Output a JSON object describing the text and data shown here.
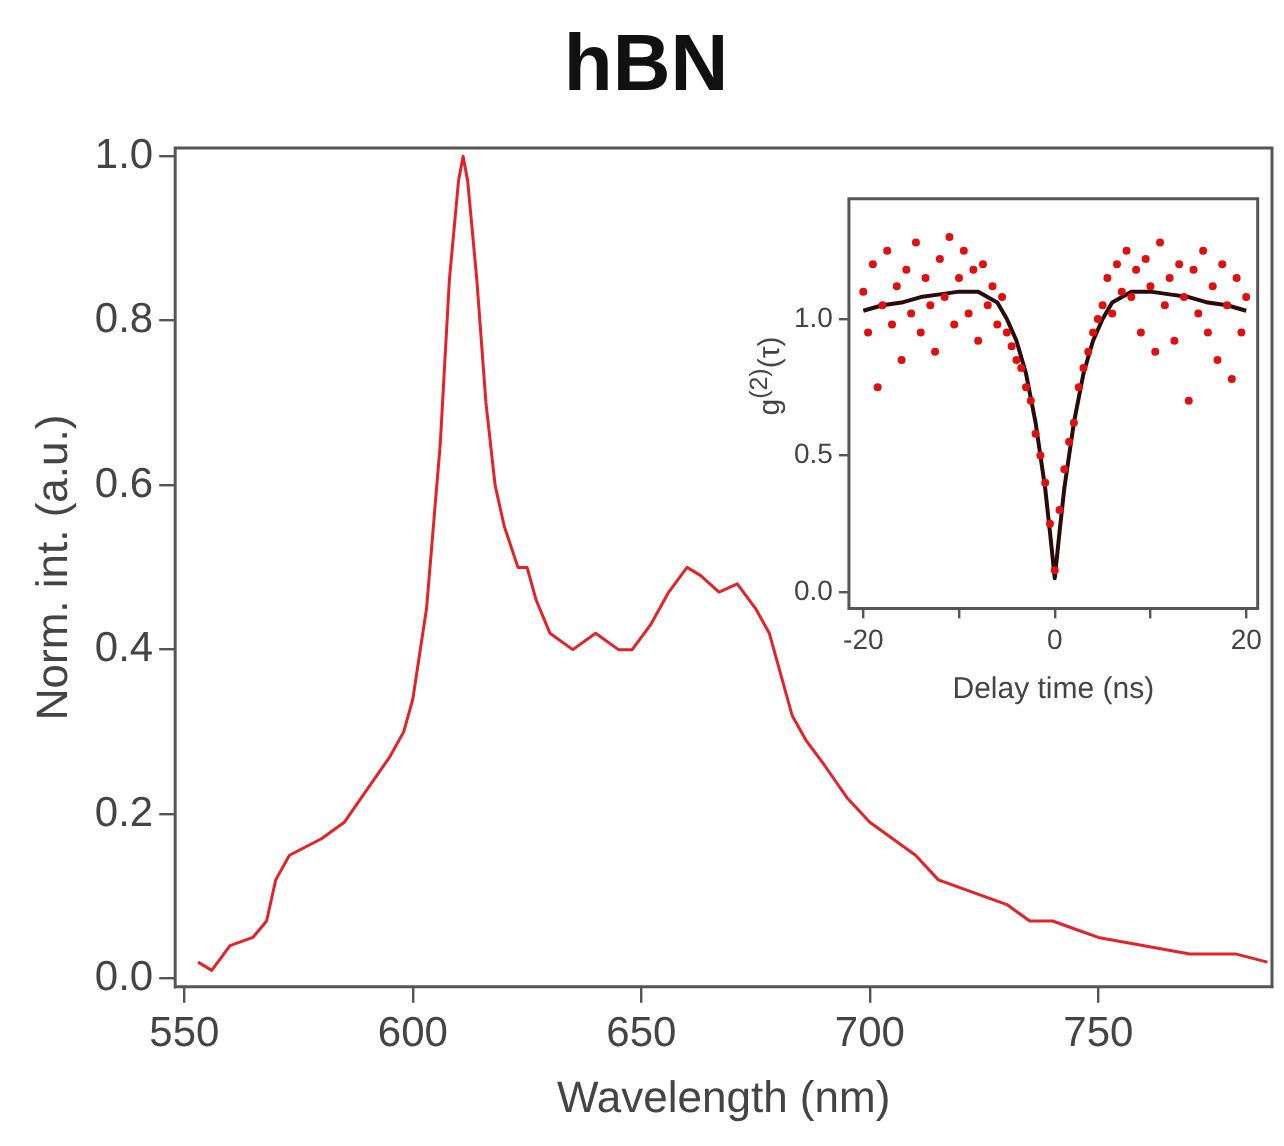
{
  "chart_data": [
    {
      "type": "line",
      "title": "hBN",
      "xlabel": "Wavelength (nm)",
      "ylabel": "Norm. int. (a.u.)",
      "color": "#e3222a",
      "x": [
        553,
        556,
        560,
        565,
        568,
        570,
        573,
        580,
        585,
        590,
        595,
        598,
        600,
        603,
        606,
        608,
        610,
        611,
        612,
        614,
        616,
        618,
        620,
        623,
        625,
        627,
        630,
        635,
        640,
        645,
        648,
        652,
        656,
        660,
        663,
        667,
        671,
        675,
        678,
        680,
        683,
        686,
        690,
        695,
        700,
        705,
        710,
        715,
        720,
        725,
        730,
        735,
        740,
        745,
        750,
        760,
        770,
        780,
        787
      ],
      "values": [
        0.02,
        0.01,
        0.04,
        0.05,
        0.07,
        0.12,
        0.15,
        0.17,
        0.19,
        0.23,
        0.27,
        0.3,
        0.34,
        0.45,
        0.65,
        0.85,
        0.97,
        1.0,
        0.97,
        0.85,
        0.7,
        0.6,
        0.55,
        0.5,
        0.5,
        0.46,
        0.42,
        0.4,
        0.42,
        0.4,
        0.4,
        0.43,
        0.47,
        0.5,
        0.49,
        0.47,
        0.48,
        0.45,
        0.42,
        0.38,
        0.32,
        0.29,
        0.26,
        0.22,
        0.19,
        0.17,
        0.15,
        0.12,
        0.11,
        0.1,
        0.09,
        0.07,
        0.07,
        0.06,
        0.05,
        0.04,
        0.03,
        0.03,
        0.02
      ],
      "xlim": [
        548,
        788
      ],
      "ylim": [
        -0.01,
        1.01
      ],
      "xticks": [
        550,
        600,
        650,
        700,
        750
      ],
      "yticks": [
        {
          "value": 0,
          "label": "0.0"
        },
        {
          "value": 0.2,
          "label": "0.2"
        },
        {
          "value": 0.4,
          "label": "0.4"
        },
        {
          "value": 0.6,
          "label": "0.6"
        },
        {
          "value": 0.8,
          "label": "0.8"
        },
        {
          "value": 1,
          "label": "1.0"
        }
      ],
      "grid": false,
      "legend": false
    },
    {
      "type": "scatter",
      "xlabel": "Delay time (ns)",
      "ylabel": "g$^{(2)}$(τ)",
      "series": [
        {
          "type": "scatter",
          "color": "#e01010",
          "marker": "circle",
          "x": [
            -20,
            -19.5,
            -19,
            -18.5,
            -18,
            -17.5,
            -17,
            -16.5,
            -16,
            -15.5,
            -15,
            -14.5,
            -14,
            -13.5,
            -13,
            -12.5,
            -12,
            -11.5,
            -11,
            -10.5,
            -10,
            -9.5,
            -9,
            -8.5,
            -8,
            -7.5,
            -7,
            -6.5,
            -6,
            -5.5,
            -5,
            -4.5,
            -4,
            -3.5,
            -3,
            -2.5,
            -2,
            -1.5,
            -1,
            -0.5,
            0,
            0.5,
            1,
            1.5,
            2,
            2.5,
            3,
            3.5,
            4,
            4.5,
            5,
            5.5,
            6,
            6.5,
            7,
            7.5,
            8,
            8.5,
            9,
            9.5,
            10,
            10.5,
            11,
            11.5,
            12,
            12.5,
            13,
            13.5,
            14,
            14.5,
            15,
            15.5,
            16,
            16.5,
            17,
            17.5,
            18,
            18.5,
            19,
            19.5,
            20
          ],
          "values": [
            1.1,
            0.95,
            1.2,
            0.75,
            1.05,
            1.25,
            0.98,
            1.12,
            0.85,
            1.18,
            1.02,
            1.28,
            0.95,
            1.15,
            1.05,
            0.88,
            1.22,
            1.08,
            1.3,
            0.98,
            1.15,
            1.25,
            1.02,
            1.18,
            0.92,
            1.2,
            1.05,
            1.12,
            0.98,
            1.08,
            0.95,
            0.9,
            0.85,
            0.82,
            0.75,
            0.7,
            0.58,
            0.5,
            0.4,
            0.25,
            0.08,
            0.3,
            0.45,
            0.55,
            0.62,
            0.75,
            0.82,
            0.88,
            0.95,
            1.0,
            1.05,
            1.15,
            1.02,
            1.2,
            1.1,
            1.25,
            1.08,
            1.18,
            0.95,
            1.22,
            1.12,
            0.88,
            1.28,
            1.05,
            1.15,
            0.92,
            1.2,
            1.08,
            0.7,
            1.18,
            1.02,
            1.25,
            0.95,
            1.12,
            0.85,
            1.2,
            1.05,
            0.78,
            1.15,
            0.95,
            1.08
          ]
        },
        {
          "type": "line",
          "color": "#2a0a0a",
          "marker": "none",
          "x": [
            -20,
            -18,
            -16,
            -14,
            -12,
            -10,
            -8,
            -6,
            -5,
            -4,
            -3,
            -2,
            -1,
            -0.5,
            0,
            0.5,
            1,
            2,
            3,
            4,
            5,
            6,
            8,
            10,
            12,
            14,
            16,
            18,
            20
          ],
          "values": [
            1.03,
            1.05,
            1.06,
            1.08,
            1.09,
            1.1,
            1.1,
            1.06,
            1.0,
            0.92,
            0.8,
            0.62,
            0.38,
            0.22,
            0.05,
            0.22,
            0.38,
            0.62,
            0.8,
            0.92,
            1.0,
            1.06,
            1.1,
            1.1,
            1.09,
            1.08,
            1.06,
            1.05,
            1.03
          ]
        }
      ],
      "xlim": [
        -21.5,
        21.2
      ],
      "ylim": [
        -0.06,
        1.44
      ],
      "xticks": [
        -20,
        {
          "value": -10,
          "label": null
        },
        0,
        {
          "value": 10,
          "label": null
        },
        20
      ],
      "yticks": [
        {
          "value": 0,
          "label": "0.0"
        },
        {
          "value": 0.5,
          "label": "0.5"
        },
        {
          "value": 1,
          "label": "1.0"
        }
      ],
      "grid": false,
      "legend": false
    }
  ]
}
